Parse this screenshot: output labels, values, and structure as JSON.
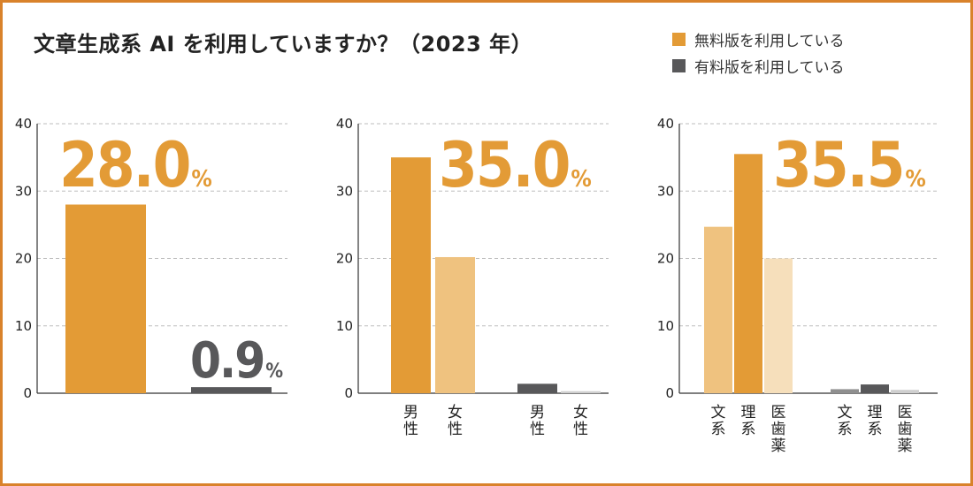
{
  "title": "文章生成系 AI を利用していますか？（2023 年）",
  "legend": [
    {
      "label": "無料版を利用している",
      "color": "#e39b36"
    },
    {
      "label": "有料版を利用している",
      "color": "#58585a"
    }
  ],
  "colors": {
    "free": "#e39b36",
    "free_light": "#efc27f",
    "free_lighter": "#f6dfbb",
    "paid": "#58585a",
    "paid_light": "#8f8f8f",
    "paid_lighter": "#cfcfcf",
    "grid": "#bdbdbd",
    "axis": "#333333",
    "border": "#d9822b"
  },
  "chart_data": [
    {
      "type": "bar",
      "ylim": [
        0,
        40
      ],
      "yticks": [
        0,
        10,
        20,
        30,
        40
      ],
      "grid": true,
      "bars": [
        {
          "group": "free",
          "category": "",
          "value": 28.0,
          "shade": "free"
        },
        {
          "group": "paid",
          "category": "",
          "value": 0.9,
          "shade": "paid"
        }
      ],
      "labels": [
        {
          "number": "28.0",
          "unit": "%",
          "color": "free"
        },
        {
          "number": "0.9",
          "unit": "%",
          "color": "paid"
        }
      ]
    },
    {
      "type": "bar",
      "ylim": [
        0,
        40
      ],
      "yticks": [
        0,
        10,
        20,
        30,
        40
      ],
      "grid": true,
      "bars": [
        {
          "group": "free",
          "category": "男性",
          "value": 35.0,
          "shade": "free"
        },
        {
          "group": "free",
          "category": "女性",
          "value": 20.2,
          "shade": "free_light"
        },
        {
          "group": "paid",
          "category": "男性",
          "value": 1.4,
          "shade": "paid"
        },
        {
          "group": "paid",
          "category": "女性",
          "value": 0.3,
          "shade": "paid_lighter"
        }
      ],
      "labels": [
        {
          "number": "35.0",
          "unit": "%",
          "color": "free"
        }
      ]
    },
    {
      "type": "bar",
      "ylim": [
        0,
        40
      ],
      "yticks": [
        0,
        10,
        20,
        30,
        40
      ],
      "grid": true,
      "bars": [
        {
          "group": "free",
          "category": "文系",
          "value": 24.7,
          "shade": "free_light"
        },
        {
          "group": "free",
          "category": "理系",
          "value": 35.5,
          "shade": "free"
        },
        {
          "group": "free",
          "category": "医歯薬",
          "value": 20.0,
          "shade": "free_lighter"
        },
        {
          "group": "paid",
          "category": "文系",
          "value": 0.6,
          "shade": "paid_light"
        },
        {
          "group": "paid",
          "category": "理系",
          "value": 1.3,
          "shade": "paid"
        },
        {
          "group": "paid",
          "category": "医歯薬",
          "value": 0.5,
          "shade": "paid_lighter"
        }
      ],
      "labels": [
        {
          "number": "35.5",
          "unit": "%",
          "color": "free"
        }
      ]
    }
  ]
}
